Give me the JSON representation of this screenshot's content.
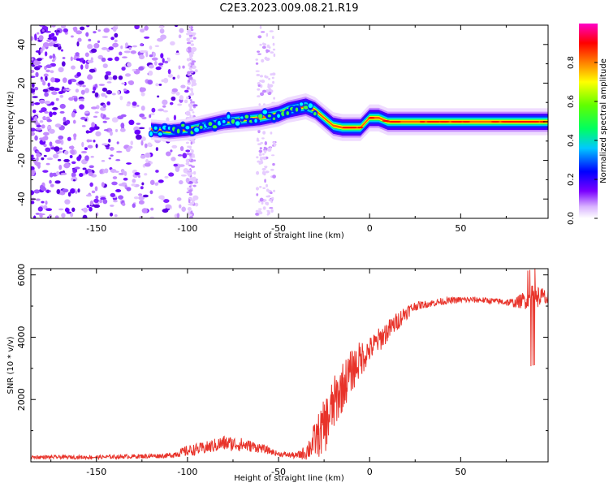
{
  "title": "C2E3.2023.009.08.21.R19",
  "chart_data": [
    {
      "type": "heatmap",
      "title": "C2E3.2023.009.08.21.R19",
      "xlabel": "Height of straight line (km)",
      "ylabel": "Frequency (Hz)",
      "xlim": [
        -186,
        98
      ],
      "ylim": [
        -50,
        50
      ],
      "xticks": [
        "-150",
        "-100",
        "-50",
        "0",
        "50"
      ],
      "xtick_values": [
        -150,
        -100,
        -50,
        0,
        50
      ],
      "yticks": [
        "-40",
        "-20",
        "0",
        "20",
        "40"
      ],
      "ytick_values": [
        -40,
        -20,
        0,
        20,
        40
      ],
      "colorbar": {
        "label": "Normalized spectral amplitude",
        "ticks": [
          "0.0",
          "0.2",
          "0.4",
          "0.6",
          "0.8"
        ],
        "tick_values": [
          0.0,
          0.2,
          0.4,
          0.6,
          0.8
        ],
        "range": [
          0,
          1
        ],
        "colormap": "rainbow (white-violet-blue-cyan-green-yellow-red-magenta)"
      },
      "ridge": {
        "x": [
          -120,
          -110,
          -100,
          -90,
          -80,
          -70,
          -60,
          -50,
          -45,
          -40,
          -35,
          -30,
          -25,
          -20,
          -15,
          -10,
          -5,
          0,
          5,
          10,
          20,
          40,
          60,
          80,
          98
        ],
        "y": [
          -4,
          -5,
          -4,
          -2,
          0,
          1,
          2,
          4,
          6,
          7,
          8,
          6,
          2,
          -2,
          -3,
          -3,
          -3,
          2,
          2,
          0,
          0,
          0,
          0,
          0,
          0
        ]
      },
      "noise_region": {
        "x_range": [
          -186,
          -105
        ],
        "y_range": [
          -50,
          50
        ]
      }
    },
    {
      "type": "line",
      "title": "",
      "xlabel": "Height of straight line (km)",
      "ylabel": "SNR (10 * v/v)",
      "xlim": [
        -186,
        98
      ],
      "ylim": [
        0,
        6200
      ],
      "xticks": [
        "-150",
        "-100",
        "-50",
        "0",
        "50"
      ],
      "xtick_values": [
        -150,
        -100,
        -50,
        0,
        50
      ],
      "yticks": [
        "2000",
        "4000",
        "6000"
      ],
      "ytick_values": [
        2000,
        4000,
        6000
      ],
      "color": "#e8332a",
      "series": [
        {
          "name": "SNR",
          "x": [
            -186,
            -150,
            -110,
            -100,
            -90,
            -80,
            -70,
            -60,
            -50,
            -40,
            -35,
            -30,
            -25,
            -20,
            -15,
            -10,
            -5,
            0,
            5,
            10,
            15,
            20,
            25,
            30,
            35,
            40,
            50,
            60,
            70,
            80,
            85,
            90,
            95,
            98
          ],
          "y": [
            150,
            150,
            200,
            350,
            450,
            600,
            550,
            450,
            250,
            200,
            300,
            700,
            1100,
            1800,
            2400,
            2900,
            3300,
            3600,
            3900,
            4200,
            4500,
            4800,
            5000,
            5050,
            5100,
            5150,
            5200,
            5200,
            5150,
            5100,
            5200,
            5300,
            5300,
            5200
          ],
          "noise_amplitude": [
            60,
            60,
            80,
            180,
            200,
            250,
            220,
            150,
            80,
            100,
            250,
            600,
            900,
            900,
            800,
            700,
            600,
            400,
            400,
            350,
            300,
            250,
            150,
            120,
            120,
            120,
            100,
            100,
            100,
            150,
            300,
            400,
            300,
            300
          ]
        }
      ]
    }
  ]
}
